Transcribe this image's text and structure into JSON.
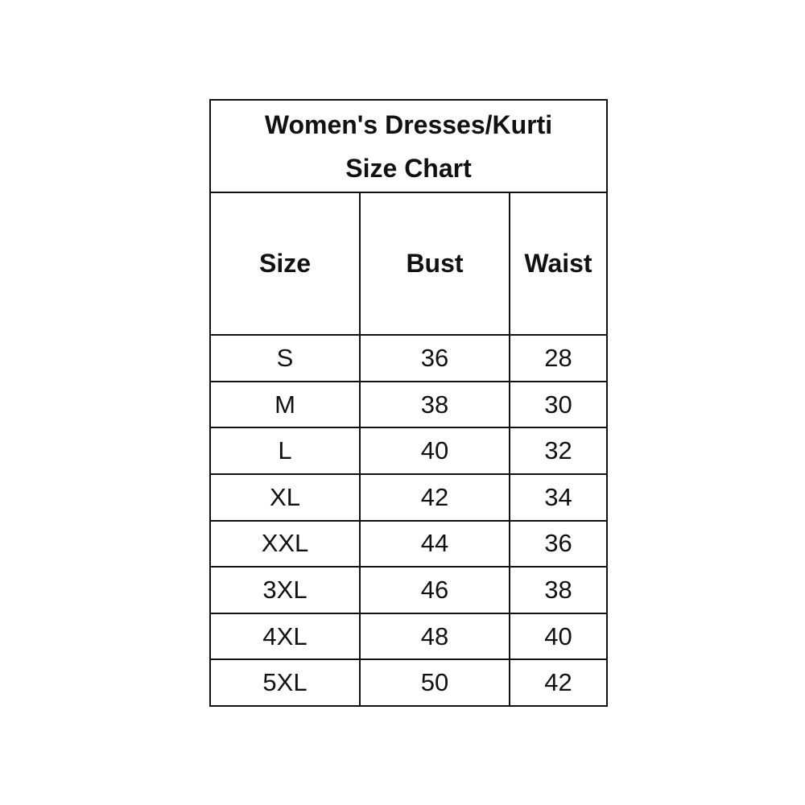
{
  "title": {
    "line1": "Women's Dresses/Kurti",
    "line2": "Size Chart"
  },
  "columns": [
    "Size",
    "Bust",
    "Waist"
  ],
  "rows": [
    [
      "S",
      "36",
      "28"
    ],
    [
      "M",
      "38",
      "30"
    ],
    [
      "L",
      "40",
      "32"
    ],
    [
      "XL",
      "42",
      "34"
    ],
    [
      "XXL",
      "44",
      "36"
    ],
    [
      "3XL",
      "46",
      "38"
    ],
    [
      "4XL",
      "48",
      "40"
    ],
    [
      "5XL",
      "50",
      "42"
    ]
  ]
}
